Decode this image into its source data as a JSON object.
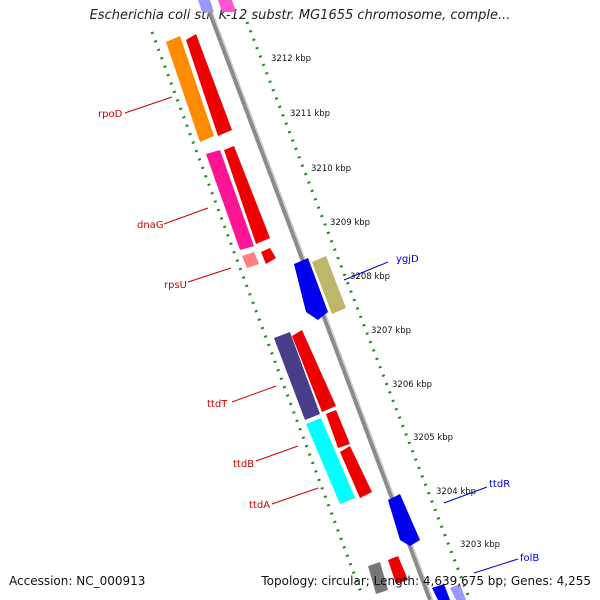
{
  "title": "Escherichia coli str. K-12 substr. MG1655 chromosome, comple...",
  "footer": {
    "accession": "Accession: NC_000913",
    "topology": "Topology: circular; Length: 4,639,675 bp; Genes: 4,255"
  },
  "colors": {
    "backbone": "#8a8a8a",
    "dotted": "#1f8a1f",
    "left_label": "#cc0000",
    "right_label": "#0000cc"
  },
  "ticks": [
    "3212 kbp",
    "3211 kbp",
    "3210 kbp",
    "3209 kbp",
    "3208 kbp",
    "3207 kbp",
    "3206 kbp",
    "3205 kbp",
    "3204 kbp",
    "3203 kbp"
  ],
  "genes_left": [
    {
      "name": "rpoD",
      "color": "#cc0000"
    },
    {
      "name": "dnaG",
      "color": "#cc0000"
    },
    {
      "name": "rpsU",
      "color": "#cc0000"
    },
    {
      "name": "ttdT",
      "color": "#cc0000"
    },
    {
      "name": "ttdB",
      "color": "#cc0000"
    },
    {
      "name": "ttdA",
      "color": "#cc0000"
    }
  ],
  "genes_right": [
    {
      "name": "ygjD",
      "color": "#0000cc"
    },
    {
      "name": "ttdR",
      "color": "#0000cc"
    },
    {
      "name": "folB",
      "color": "#0000cc"
    }
  ]
}
